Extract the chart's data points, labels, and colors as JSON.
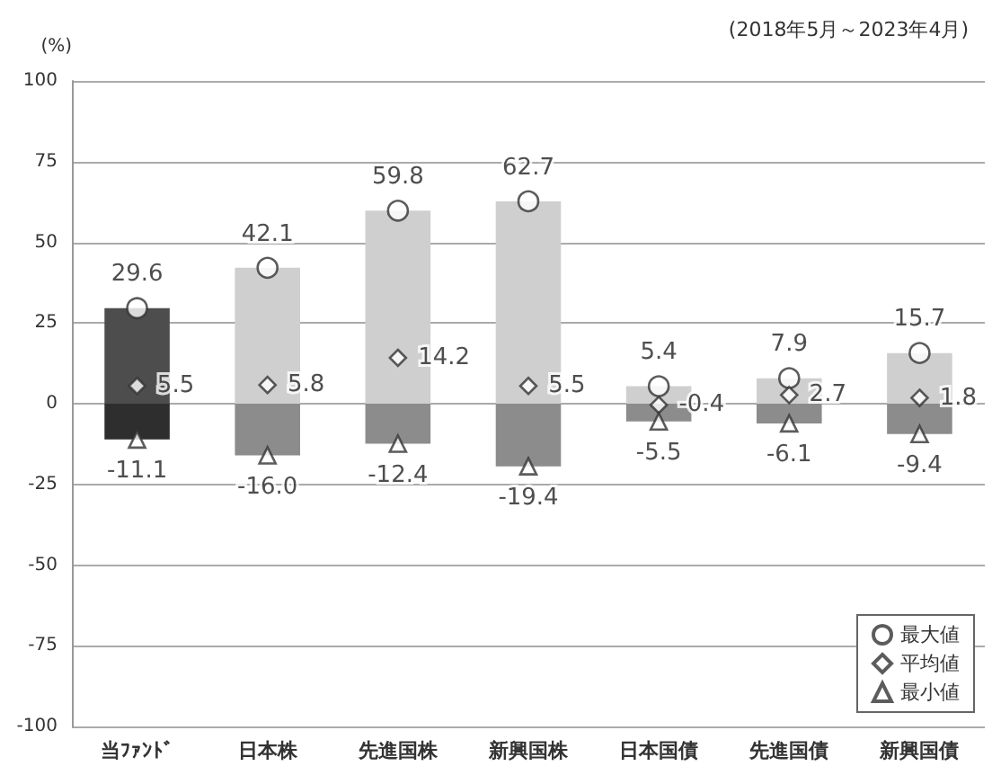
{
  "chart_data": {
    "type": "bar",
    "subtitle": "(2018年5月～2023年4月)",
    "ylabel": "(%)",
    "categories": [
      "当ﾌｧﾝﾄﾞ",
      "日本株",
      "先進国株",
      "新興国株",
      "日本国債",
      "先進国債",
      "新興国債"
    ],
    "stacked": true,
    "series": [
      {
        "values": [
          29.6,
          42.1,
          59.8,
          62.7,
          5.4,
          7.9,
          15.7
        ],
        "colors": [
          "#4d4d4d",
          "#cfcfcf",
          "#cfcfcf",
          "#cfcfcf",
          "#cfcfcf",
          "#cfcfcf",
          "#cfcfcf"
        ]
      },
      {
        "values": [
          -11.1,
          -16.0,
          -12.4,
          -19.4,
          -5.5,
          -6.1,
          -9.4
        ],
        "colors": [
          "#2e2e2e",
          "#8c8c8c",
          "#8c8c8c",
          "#8c8c8c",
          "#8c8c8c",
          "#8c8c8c",
          "#8c8c8c"
        ]
      },
      {
        "type": "scatter",
        "name": "最大値",
        "marker": "circle",
        "color": "#333333",
        "x": [
          "当ﾌｧﾝﾄﾞ",
          "日本株",
          "先進国株",
          "新興国株",
          "日本国債",
          "先進国債",
          "新興国債"
        ],
        "values": [
          29.6,
          42.1,
          59.8,
          62.7,
          5.4,
          7.9,
          15.7
        ],
        "value_labels": [
          "29.6",
          "42.1",
          "59.8",
          "62.7",
          "5.4",
          "7.9",
          "15.7"
        ]
      },
      {
        "type": "scatter",
        "name": "平均値",
        "marker": "diamond",
        "color": "#333333",
        "x": [
          "当ﾌｧﾝﾄﾞ",
          "日本株",
          "先進国株",
          "新興国株",
          "日本国債",
          "先進国債",
          "新興国債"
        ],
        "values": [
          5.5,
          5.8,
          14.2,
          5.5,
          -0.4,
          2.7,
          1.8
        ],
        "value_labels": [
          "5.5",
          "5.8",
          "14.2",
          "5.5",
          "-0.4",
          "2.7",
          "1.8"
        ]
      },
      {
        "type": "scatter",
        "name": "最小値",
        "marker": "triangle",
        "color": "#333333",
        "x": [
          "当ﾌｧﾝﾄﾞ",
          "日本株",
          "先進国株",
          "新興国株",
          "日本国債",
          "先進国債",
          "新興国債"
        ],
        "values": [
          -11.1,
          -16.0,
          -12.4,
          -19.4,
          -5.5,
          -6.1,
          -9.4
        ],
        "value_labels": [
          "-11.1",
          "-16.0",
          "-12.4",
          "-19.4",
          "-5.5",
          "-6.1",
          "-9.4"
        ]
      }
    ],
    "ylim": [
      -100,
      100
    ],
    "yticks": [
      -100,
      -75,
      -50,
      -25,
      0,
      25,
      50,
      75,
      100
    ],
    "grid": "y",
    "legend": "bottom right"
  }
}
